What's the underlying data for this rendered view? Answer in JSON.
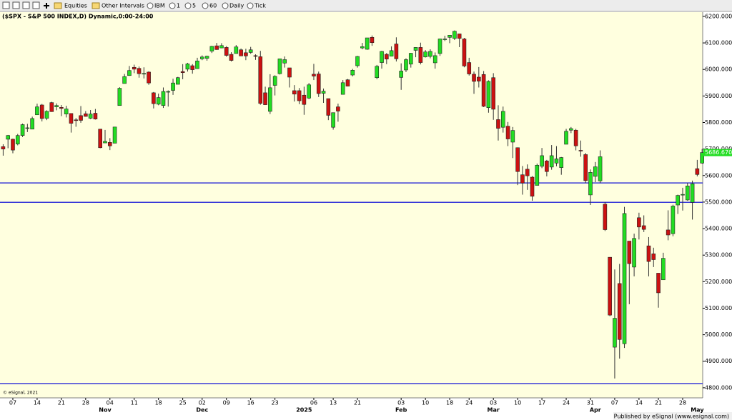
{
  "toolbar": {
    "items": [
      "Equities",
      "Other Intervals",
      "IBM",
      "1",
      "5",
      "60",
      "Daily",
      "Tick"
    ]
  },
  "footer": {
    "copyright": "© eSignal, 2021",
    "publisher": "Published by eSignal (www.esignal.com)"
  },
  "chart_data": {
    "type": "candlestick",
    "title": "($SPX - S&P 500 INDEX,D) Dynamic,0:00-24:00",
    "color_up": "#22dd22",
    "color_down": "#cc1111",
    "categories": [
      null,
      null,
      "07",
      null,
      null,
      null,
      null,
      "14",
      null,
      null,
      null,
      null,
      "21",
      null,
      null,
      null,
      null,
      "28",
      null,
      null,
      null,
      null,
      "04",
      null,
      null,
      null,
      null,
      "11",
      null,
      null,
      null,
      null,
      "18",
      null,
      null,
      null,
      null,
      "25",
      null,
      null,
      null,
      "02",
      null,
      null,
      null,
      null,
      "09",
      null,
      null,
      null,
      null,
      "16",
      null,
      null,
      null,
      null,
      "23",
      null,
      null,
      null,
      null,
      null,
      null,
      null,
      "06",
      null,
      null,
      null,
      "13",
      null,
      null,
      null,
      null,
      "21",
      null,
      null,
      null,
      null,
      null,
      null,
      null,
      null,
      "03",
      null,
      null,
      null,
      null,
      "10",
      null,
      null,
      null,
      null,
      "18",
      null,
      null,
      null,
      "24",
      null,
      null,
      null,
      null,
      "03",
      null,
      null,
      null,
      null,
      "10",
      null,
      null,
      null,
      null,
      "17",
      null,
      null,
      null,
      null,
      "24",
      null,
      null,
      null,
      null,
      "31",
      null,
      null,
      null,
      null,
      "07",
      null,
      null,
      null,
      null,
      "14",
      null,
      null,
      null,
      "21",
      null,
      null,
      null,
      null,
      "28",
      null,
      null,
      null,
      null
    ],
    "month_labels": [
      null,
      null,
      null,
      null,
      null,
      null,
      null,
      null,
      null,
      null,
      null,
      null,
      null,
      null,
      null,
      null,
      null,
      null,
      null,
      null,
      null,
      "Nov",
      null,
      null,
      null,
      null,
      null,
      null,
      null,
      null,
      null,
      null,
      null,
      null,
      null,
      null,
      null,
      null,
      null,
      null,
      null,
      "Dec",
      null,
      null,
      null,
      null,
      null,
      null,
      null,
      null,
      null,
      null,
      null,
      null,
      null,
      null,
      null,
      null,
      null,
      null,
      null,
      null,
      "2025",
      null,
      null,
      null,
      null,
      null,
      null,
      null,
      null,
      null,
      null,
      null,
      null,
      null,
      null,
      null,
      null,
      null,
      null,
      null,
      "Feb",
      null,
      null,
      null,
      null,
      null,
      null,
      null,
      null,
      null,
      null,
      null,
      null,
      null,
      null,
      null,
      null,
      null,
      null,
      "Mar",
      null,
      null,
      null,
      null,
      null,
      null,
      null,
      null,
      null,
      null,
      null,
      null,
      null,
      null,
      null,
      null,
      null,
      null,
      null,
      null,
      "Apr",
      null,
      null,
      null,
      null,
      null,
      null,
      null,
      null,
      null,
      null,
      null,
      null,
      null,
      null,
      null,
      null,
      null,
      null,
      null,
      null,
      "May",
      null
    ],
    "open": [
      5709,
      5737,
      5737,
      5719,
      5751,
      5778,
      5775,
      5829,
      5866,
      5816,
      5875,
      5859,
      5857,
      5832,
      5834,
      5810,
      5826,
      5833,
      5816,
      5835,
      5775,
      5723,
      5725,
      5722,
      5864,
      5947,
      5977,
      6008,
      6004,
      5985,
      5990,
      5912,
      5869,
      5864,
      5915,
      5921,
      5944,
      5992,
      6001,
      6014,
      6003,
      6040,
      6042,
      6069,
      6089,
      6081,
      6083,
      6057,
      6060,
      6074,
      6063,
      6064,
      6052,
      6048,
      5912,
      5842,
      5940,
      5984,
      6024,
      6006,
      5920,
      5920,
      5903,
      5892,
      5982,
      5983,
      5910,
      5890,
      5782,
      5859,
      5906,
      5961,
      5979,
      6014,
      6081,
      6076,
      6121,
      5969,
      6026,
      6057,
      6050,
      6096,
      5970,
      5998,
      6020,
      6072,
      6083,
      6047,
      6049,
      6025,
      6060,
      6115,
      6121,
      6117,
      6134,
      6115,
      6026,
      5982,
      5971,
      5981,
      5856,
      5969,
      5811,
      5782,
      5786,
      5726,
      5705,
      5603,
      5624,
      5594,
      5563,
      5635,
      5655,
      5632,
      5647,
      5630,
      5718,
      5771,
      5771,
      5695,
      5679,
      5527,
      5597,
      5580,
      5492,
      5292,
      4953,
      5193,
      4966,
      5353,
      5255,
      5441,
      5411,
      5335,
      5305,
      5232,
      5207,
      5395,
      5381,
      5489,
      5529,
      5508,
      5499,
      5626,
      5647
    ],
    "high": [
      5718,
      5753,
      5739,
      5757,
      5796,
      5795,
      5822,
      5871,
      5870,
      5846,
      5878,
      5872,
      5866,
      5863,
      5834,
      5817,
      5862,
      5843,
      5847,
      5851,
      5775,
      5772,
      5741,
      5783,
      5933,
      5983,
      6013,
      6018,
      6011,
      6008,
      5993,
      5915,
      5909,
      5932,
      5921,
      5965,
      5972,
      6020,
      6025,
      6020,
      6044,
      6053,
      6052,
      6089,
      6100,
      6099,
      6088,
      6065,
      6092,
      6079,
      6078,
      6085,
      6057,
      6070,
      5935,
      5982,
      5978,
      6040,
      6049,
      6006,
      5941,
      5930,
      5935,
      5949,
      6021,
      5992,
      5928,
      5890,
      5837,
      5871,
      5960,
      5964,
      6002,
      6051,
      6100,
      6119,
      6128,
      6017,
      6070,
      6062,
      6087,
      6121,
      6023,
      6042,
      6062,
      6084,
      6101,
      6073,
      6076,
      6064,
      6116,
      6127,
      6129,
      6147,
      6134,
      6119,
      6044,
      5992,
      6009,
      5994,
      5959,
      5986,
      5865,
      5860,
      5802,
      5783,
      5706,
      5636,
      5642,
      5598,
      5645,
      5704,
      5659,
      5715,
      5711,
      5670,
      5776,
      5783,
      5776,
      5732,
      5685,
      5623,
      5651,
      5695,
      5500,
      5292,
      5246,
      5267,
      5482,
      5353,
      5381,
      5460,
      5450,
      5368,
      5328,
      5232,
      5309,
      5469,
      5490,
      5528,
      5554,
      5572,
      5581,
      5659,
      5700
    ],
    "low": [
      5675,
      5703,
      5684,
      5714,
      5745,
      5764,
      5775,
      5829,
      5804,
      5809,
      5840,
      5846,
      5824,
      5819,
      5762,
      5784,
      5799,
      5822,
      5813,
      5811,
      5703,
      5723,
      5696,
      5722,
      5864,
      5947,
      5976,
      5986,
      5969,
      5966,
      5942,
      5853,
      5865,
      5855,
      5860,
      5904,
      5944,
      5963,
      5992,
      5984,
      6003,
      6035,
      6033,
      6062,
      6074,
      6080,
      6048,
      6030,
      6060,
      6051,
      6035,
      6059,
      6036,
      5867,
      5866,
      5832,
      5902,
      5981,
      6007,
      5932,
      5879,
      5869,
      5829,
      5888,
      5960,
      5896,
      5874,
      5809,
      5773,
      5803,
      5906,
      5936,
      5974,
      6007,
      6076,
      6074,
      6089,
      5963,
      6003,
      6020,
      6049,
      6030,
      5923,
      5990,
      6007,
      6046,
      6019,
      6045,
      6042,
      6003,
      6051,
      6107,
      6099,
      6111,
      6084,
      6008,
      5977,
      5908,
      5932,
      5858,
      5837,
      5810,
      5732,
      5762,
      5711,
      5666,
      5564,
      5528,
      5546,
      5505,
      5563,
      5628,
      5597,
      5622,
      5635,
      5603,
      5718,
      5760,
      5695,
      5671,
      5572,
      5489,
      5575,
      5572,
      5391,
      5070,
      4835,
      4910,
      4950,
      5115,
      5220,
      5359,
      5387,
      5220,
      5255,
      5102,
      5207,
      5356,
      5371,
      5455,
      5468,
      5505,
      5434,
      5597,
      5645
    ],
    "close": [
      5700,
      5751,
      5696,
      5751,
      5792,
      5780,
      5815,
      5859,
      5815,
      5842,
      5841,
      5864,
      5853,
      5851,
      5797,
      5809,
      5808,
      5823,
      5832,
      5813,
      5705,
      5729,
      5712,
      5783,
      5929,
      5973,
      5996,
      6001,
      5984,
      5985,
      5949,
      5871,
      5894,
      5917,
      5917,
      5949,
      5969,
      5988,
      6021,
      5999,
      6032,
      6047,
      6050,
      6087,
      6075,
      6090,
      6053,
      6034,
      6085,
      6051,
      6051,
      6074,
      6050,
      5872,
      5867,
      5931,
      5974,
      6040,
      6037,
      5971,
      5907,
      5882,
      5868,
      5942,
      5975,
      5909,
      5918,
      5827,
      5837,
      5843,
      5950,
      5937,
      5997,
      6049,
      6086,
      6119,
      6101,
      6012,
      6068,
      6039,
      6071,
      6040,
      5994,
      6037,
      6061,
      6083,
      6026,
      6066,
      6068,
      6052,
      6115,
      6115,
      6129,
      6144,
      6117,
      6013,
      5983,
      5955,
      5956,
      5861,
      5955,
      5850,
      5778,
      5842,
      5738,
      5770,
      5615,
      5572,
      5599,
      5522,
      5639,
      5675,
      5615,
      5675,
      5663,
      5668,
      5767,
      5777,
      5712,
      5693,
      5581,
      5612,
      5633,
      5671,
      5396,
      5074,
      5062,
      4982,
      5457,
      5268,
      5363,
      5406,
      5397,
      5276,
      5283,
      5158,
      5288,
      5376,
      5485,
      5525,
      5529,
      5561,
      5569,
      5604,
      5686.67
    ],
    "last_label": {
      "value": 5686.67,
      "label": "5686.6700"
    },
    "hlines": [
      {
        "value": 5572,
        "color": "#3a3ad8"
      },
      {
        "value": 5499,
        "color": "#3a3ad8"
      },
      {
        "value": 4816,
        "color": "#3a3ad8"
      }
    ],
    "ylim": [
      4762,
      6216
    ],
    "yticks": [
      {
        "value": 4800,
        "label": "4800.0000"
      },
      {
        "value": 4900,
        "label": "4900.0000"
      },
      {
        "value": 5000,
        "label": "5000.0000"
      },
      {
        "value": 5100,
        "label": "5100.0000"
      },
      {
        "value": 5200,
        "label": "5200.0000"
      },
      {
        "value": 5300,
        "label": "5300.0000"
      },
      {
        "value": 5400,
        "label": "5400.0000"
      },
      {
        "value": 5500,
        "label": "5500.0000"
      },
      {
        "value": 5600,
        "label": "5600.0000"
      },
      {
        "value": 5700,
        "label": "5700.0000"
      },
      {
        "value": 5800,
        "label": "5800.0000"
      },
      {
        "value": 5900,
        "label": "5900.0000"
      },
      {
        "value": 6000,
        "label": "6000.0000"
      },
      {
        "value": 6100,
        "label": "6100.0000"
      },
      {
        "value": 6200,
        "label": "6200.0000"
      }
    ]
  }
}
